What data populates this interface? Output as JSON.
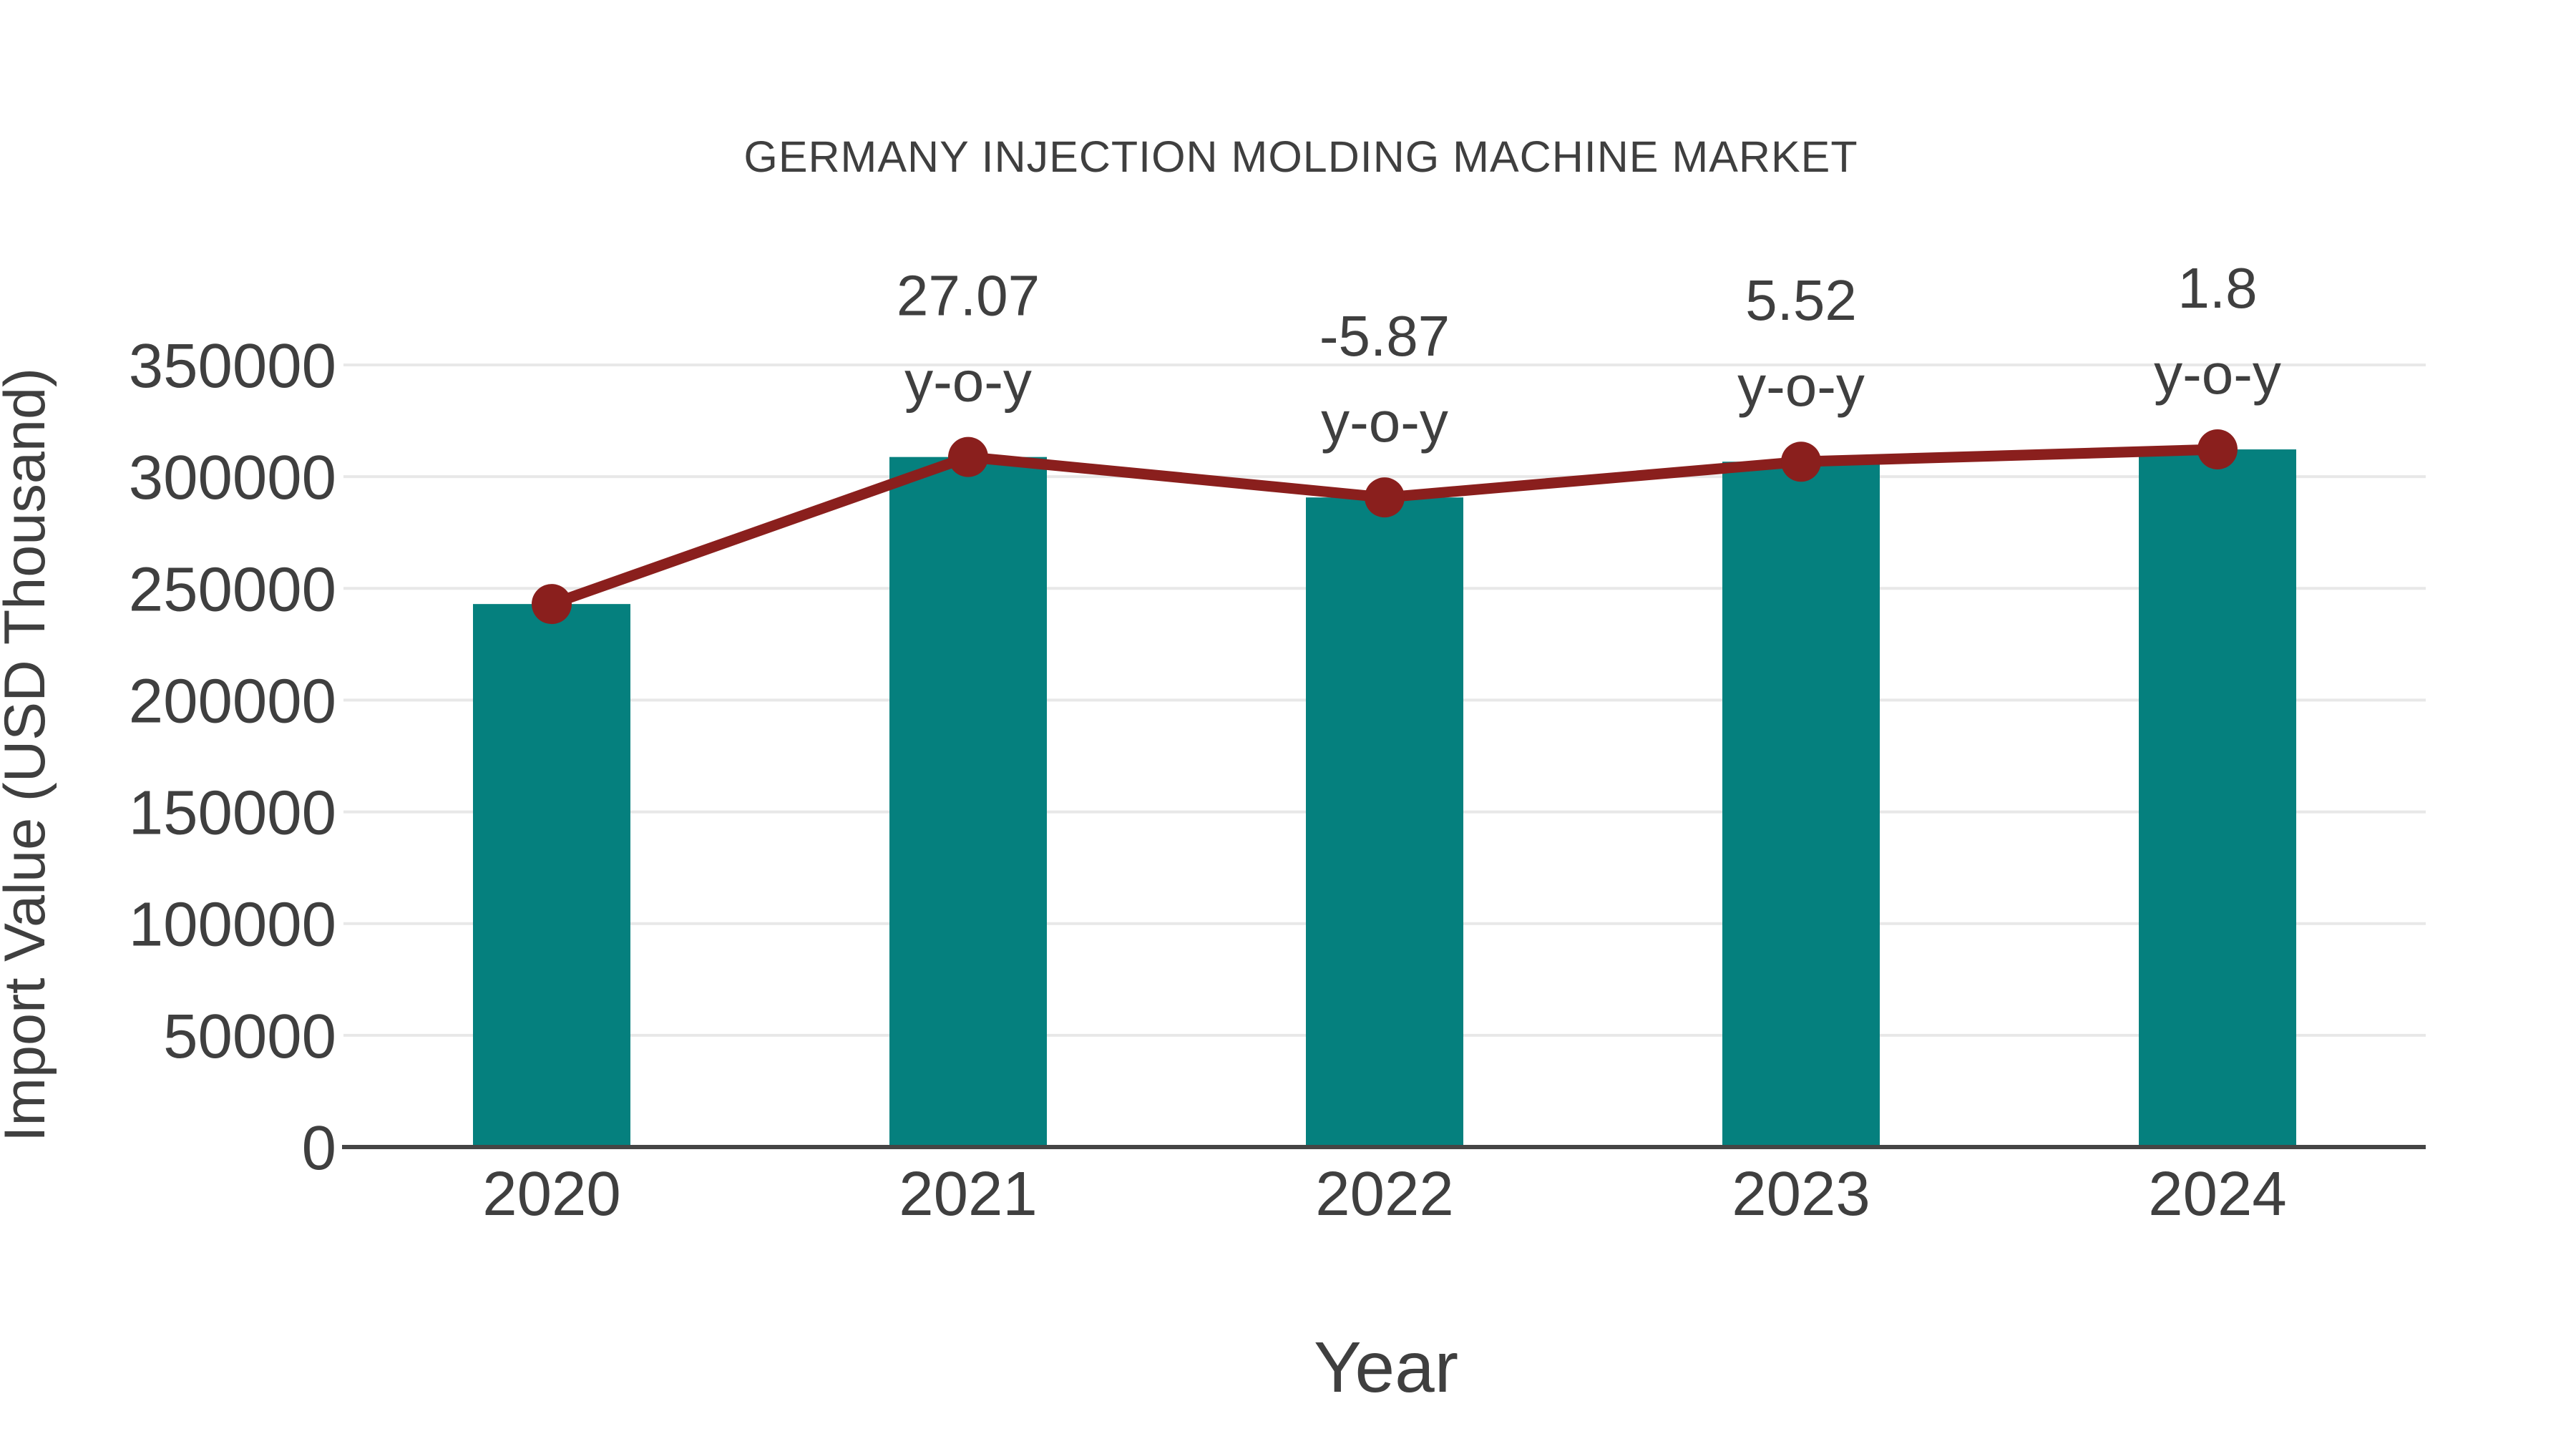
{
  "chart_data": {
    "type": "bar",
    "title": "GERMANY INJECTION MOLDING MACHINE MARKET",
    "xlabel": "Year",
    "ylabel": "Import Value (USD Thousand)",
    "categories": [
      "2020",
      "2021",
      "2022",
      "2023",
      "2024"
    ],
    "series": [
      {
        "name": "import-value-bars",
        "type": "bar",
        "values": [
          243000,
          308800,
          290700,
          306700,
          312200
        ]
      },
      {
        "name": "import-value-trend",
        "type": "line",
        "values": [
          243000,
          308800,
          290700,
          306700,
          312200
        ]
      }
    ],
    "annotations": [
      {
        "category": "2021",
        "line1": "27.07",
        "line2": "y-o-y"
      },
      {
        "category": "2022",
        "line1": "-5.87",
        "line2": "y-o-y"
      },
      {
        "category": "2023",
        "line1": "5.52",
        "line2": "y-o-y"
      },
      {
        "category": "2024",
        "line1": "1.8",
        "line2": "y-o-y"
      }
    ],
    "yticks": [
      0,
      50000,
      100000,
      150000,
      200000,
      250000,
      300000,
      350000
    ],
    "ylim": [
      0,
      350000
    ],
    "grid": true,
    "legend": false,
    "colors": {
      "bar": "#05807e",
      "line": "#8a1f1d",
      "marker": "#8a1f1d",
      "grid": "#e8e8e8",
      "axis": "#454545",
      "text": "#3f3f3f"
    }
  }
}
